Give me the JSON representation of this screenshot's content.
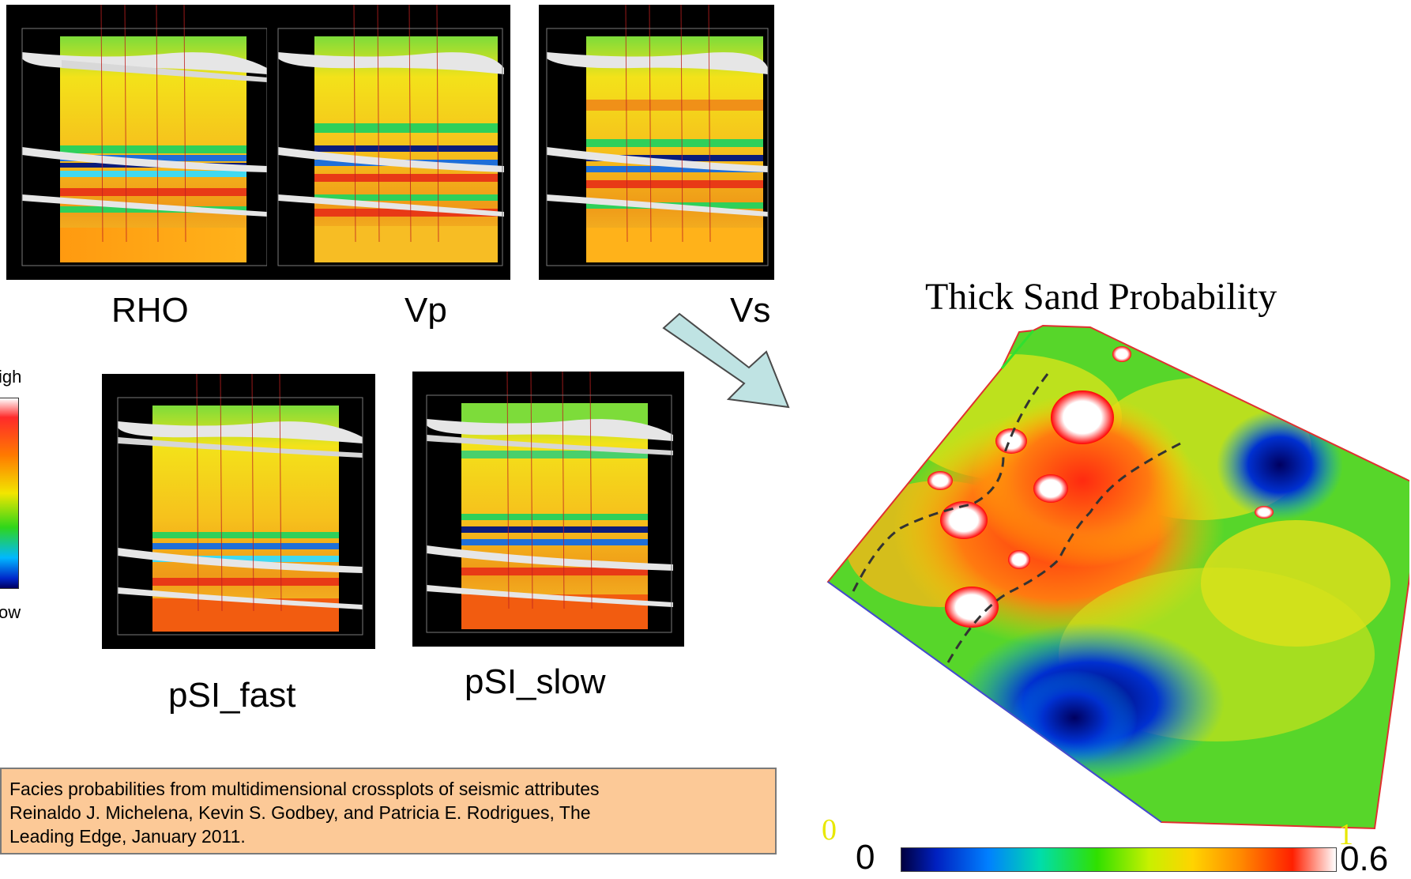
{
  "panels": {
    "rho": {
      "label": "RHO"
    },
    "vp": {
      "label": "Vp"
    },
    "vs": {
      "label": "Vs"
    },
    "psi_fast": {
      "label": "pSI_fast"
    },
    "psi_slow": {
      "label": "pSI_slow"
    }
  },
  "legend": {
    "high_label": "igh",
    "low_label": "ow"
  },
  "map": {
    "title": "Thick Sand Probability"
  },
  "reference": {
    "line1": "Facies probabilities from multidimensional crossplots of seismic attributes",
    "line2": "Reinaldo J. Michelena, Kevin S. Godbey, and Patricia E. Rodrigues, The",
    "line3": "Leading Edge, January 2011."
  },
  "colorbar": {
    "min_label": "0",
    "max_label": "0.6",
    "overlay_min": "0",
    "overlay_max": "1"
  },
  "colors": {
    "arrow_fill": "#bfe3e3",
    "reference_bg": "#fcc997",
    "yellow_text": "#e8e800"
  }
}
